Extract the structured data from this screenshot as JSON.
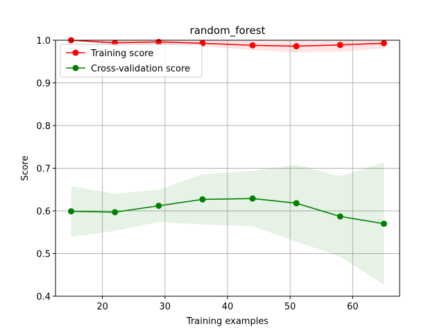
{
  "chart_data": {
    "type": "line",
    "title": "random_forest",
    "xlabel": "Training examples",
    "ylabel": "Score",
    "xlim": [
      12.5,
      67.5
    ],
    "ylim": [
      0.4,
      1.0
    ],
    "xticks": [
      20,
      30,
      40,
      50,
      60
    ],
    "yticks": [
      0.4,
      0.5,
      0.6,
      0.7,
      0.8,
      0.9,
      1.0
    ],
    "ytick_labels": [
      "0.4",
      "0.5",
      "0.6",
      "0.7",
      "0.8",
      "0.9",
      "1.0"
    ],
    "grid": true,
    "legend_position": "top-left",
    "x": [
      15,
      22,
      29,
      36,
      44,
      51,
      58,
      65
    ],
    "series": [
      {
        "name": "Training score",
        "color": "#ff0000",
        "values": [
          1.0,
          0.994,
          0.996,
          0.993,
          0.988,
          0.986,
          0.989,
          0.993
        ],
        "band_lower": [
          1.0,
          0.989,
          0.991,
          0.986,
          0.977,
          0.971,
          0.973,
          0.981
        ],
        "band_upper": [
          1.0,
          0.999,
          1.0,
          1.0,
          0.999,
          1.0,
          1.0,
          1.0
        ]
      },
      {
        "name": "Cross-validation score",
        "color": "#008000",
        "values": [
          0.599,
          0.597,
          0.612,
          0.627,
          0.629,
          0.618,
          0.587,
          0.57
        ],
        "band_lower": [
          0.539,
          0.553,
          0.574,
          0.568,
          0.564,
          0.528,
          0.493,
          0.427
        ],
        "band_upper": [
          0.658,
          0.64,
          0.65,
          0.686,
          0.694,
          0.708,
          0.681,
          0.714
        ]
      }
    ]
  }
}
